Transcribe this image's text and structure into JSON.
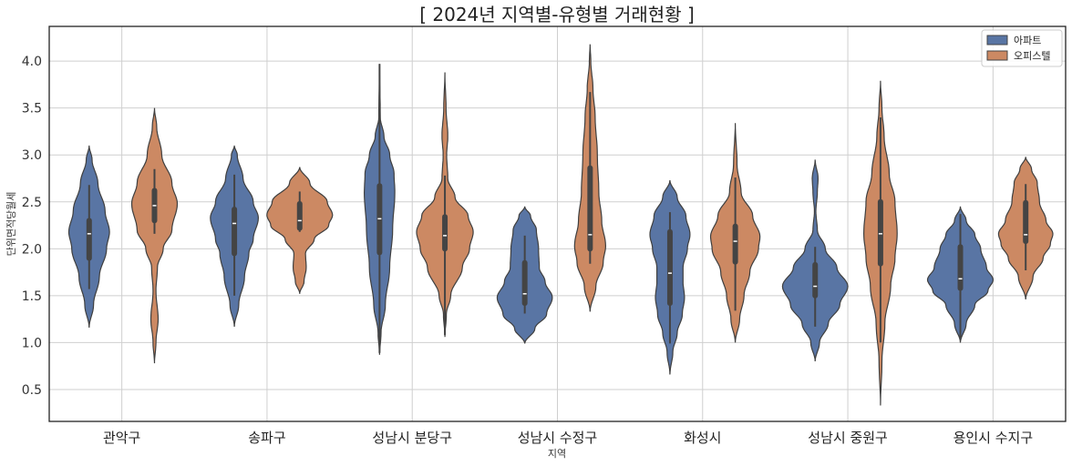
{
  "chart_data": {
    "type": "violin",
    "title": "[ 2024년 지역별-유형별 거래현황 ]",
    "xlabel": "지역",
    "ylabel": "단위면적당월세",
    "ylim": [
      0.16,
      4.37
    ],
    "yticks": [
      "0.5",
      "1.0",
      "1.5",
      "2.0",
      "2.5",
      "3.0",
      "3.5",
      "4.0"
    ],
    "ytick_values": [
      0.5,
      1.0,
      1.5,
      2.0,
      2.5,
      3.0,
      3.5,
      4.0
    ],
    "grid": true,
    "legend_position": "top-right",
    "categories": [
      "관악구",
      "송파구",
      "성남시 분당구",
      "성남시 수정구",
      "화성시",
      "성남시 중원구",
      "용인시 수지구"
    ],
    "series": [
      {
        "name": "아파트",
        "color": "#5975a4",
        "violins": [
          {
            "profile": [
              [
                1.16,
                0
              ],
              [
                1.4,
                0.03
              ],
              [
                1.7,
                0.07
              ],
              [
                2.0,
                0.12
              ],
              [
                2.18,
                0.14
              ],
              [
                2.4,
                0.11
              ],
              [
                2.7,
                0.06
              ],
              [
                2.95,
                0.02
              ],
              [
                3.1,
                0
              ]
            ],
            "q1": 1.9,
            "median": 2.16,
            "q3": 2.3,
            "whisker_low": 1.57,
            "whisker_high": 2.68
          },
          {
            "profile": [
              [
                1.17,
                0
              ],
              [
                1.4,
                0.03
              ],
              [
                1.7,
                0.07
              ],
              [
                1.95,
                0.1
              ],
              [
                2.1,
                0.13
              ],
              [
                2.33,
                0.165
              ],
              [
                2.5,
                0.13
              ],
              [
                2.75,
                0.06
              ],
              [
                3.0,
                0.02
              ],
              [
                3.1,
                0
              ]
            ],
            "q1": 1.95,
            "median": 2.27,
            "q3": 2.42,
            "whisker_low": 1.5,
            "whisker_high": 2.79
          },
          {
            "profile": [
              [
                0.87,
                0
              ],
              [
                1.1,
                0.01
              ],
              [
                1.4,
                0.04
              ],
              [
                1.8,
                0.07
              ],
              [
                2.2,
                0.09
              ],
              [
                2.6,
                0.105
              ],
              [
                2.8,
                0.1
              ],
              [
                3.0,
                0.07
              ],
              [
                3.2,
                0.03
              ],
              [
                3.4,
                0.005
              ],
              [
                3.97,
                0
              ]
            ],
            "q1": 1.96,
            "median": 2.32,
            "q3": 2.67,
            "whisker_low": 0.89,
            "whisker_high": 3.97
          },
          {
            "profile": [
              [
                0.99,
                0
              ],
              [
                1.15,
                0.07
              ],
              [
                1.3,
                0.15
              ],
              [
                1.48,
                0.19
              ],
              [
                1.65,
                0.14
              ],
              [
                1.8,
                0.1
              ],
              [
                2.0,
                0.095
              ],
              [
                2.2,
                0.08
              ],
              [
                2.35,
                0.04
              ],
              [
                2.45,
                0
              ]
            ],
            "q1": 1.42,
            "median": 1.52,
            "q3": 1.85,
            "whisker_low": 1.31,
            "whisker_high": 2.14
          },
          {
            "profile": [
              [
                0.66,
                0
              ],
              [
                0.9,
                0.02
              ],
              [
                1.1,
                0.05
              ],
              [
                1.3,
                0.085
              ],
              [
                1.48,
                0.1
              ],
              [
                1.65,
                0.09
              ],
              [
                1.8,
                0.09
              ],
              [
                2.0,
                0.12
              ],
              [
                2.15,
                0.138
              ],
              [
                2.35,
                0.11
              ],
              [
                2.55,
                0.05
              ],
              [
                2.73,
                0
              ]
            ],
            "q1": 1.42,
            "median": 1.74,
            "q3": 2.18,
            "whisker_low": 0.99,
            "whisker_high": 2.39
          },
          {
            "profile": [
              [
                0.8,
                0
              ],
              [
                1.0,
                0.03
              ],
              [
                1.2,
                0.09
              ],
              [
                1.4,
                0.17
              ],
              [
                1.6,
                0.225
              ],
              [
                1.8,
                0.15
              ],
              [
                2.0,
                0.07
              ],
              [
                2.2,
                0.015
              ],
              [
                2.4,
                0.005
              ],
              [
                2.6,
                0.015
              ],
              [
                2.75,
                0.02
              ],
              [
                2.95,
                0
              ]
            ],
            "q1": 1.5,
            "median": 1.6,
            "q3": 1.83,
            "whisker_low": 1.17,
            "whisker_high": 2.02
          },
          {
            "profile": [
              [
                1.0,
                0
              ],
              [
                1.2,
                0.04
              ],
              [
                1.4,
                0.1
              ],
              [
                1.55,
                0.19
              ],
              [
                1.67,
                0.226
              ],
              [
                1.8,
                0.18
              ],
              [
                2.0,
                0.14
              ],
              [
                2.15,
                0.1
              ],
              [
                2.3,
                0.04
              ],
              [
                2.45,
                0
              ]
            ],
            "q1": 1.58,
            "median": 1.68,
            "q3": 2.02,
            "whisker_low": 1.05,
            "whisker_high": 2.37
          }
        ]
      },
      {
        "name": "오피스텔",
        "color": "#cc8963",
        "violins": [
          {
            "profile": [
              [
                0.78,
                0
              ],
              [
                1.0,
                0.01
              ],
              [
                1.25,
                0.025
              ],
              [
                1.55,
                0.01
              ],
              [
                1.8,
                0.02
              ],
              [
                2.0,
                0.06
              ],
              [
                2.2,
                0.12
              ],
              [
                2.48,
                0.157
              ],
              [
                2.7,
                0.12
              ],
              [
                3.0,
                0.05
              ],
              [
                3.3,
                0.015
              ],
              [
                3.5,
                0
              ]
            ],
            "q1": 2.3,
            "median": 2.46,
            "q3": 2.62,
            "whisker_low": 2.16,
            "whisker_high": 2.85
          },
          {
            "profile": [
              [
                1.52,
                0
              ],
              [
                1.65,
                0.03
              ],
              [
                1.8,
                0.045
              ],
              [
                1.95,
                0.04
              ],
              [
                2.1,
                0.1
              ],
              [
                2.25,
                0.2
              ],
              [
                2.36,
                0.226
              ],
              [
                2.5,
                0.19
              ],
              [
                2.7,
                0.07
              ],
              [
                2.87,
                0
              ]
            ],
            "q1": 2.22,
            "median": 2.3,
            "q3": 2.48,
            "whisker_low": 2.18,
            "whisker_high": 2.61
          },
          {
            "profile": [
              [
                1.06,
                0
              ],
              [
                1.3,
                0.01
              ],
              [
                1.5,
                0.04
              ],
              [
                1.8,
                0.12
              ],
              [
                2.0,
                0.17
              ],
              [
                2.18,
                0.195
              ],
              [
                2.35,
                0.16
              ],
              [
                2.55,
                0.07
              ],
              [
                2.75,
                0.02
              ],
              [
                3.0,
                0.012
              ],
              [
                3.2,
                0.02
              ],
              [
                3.5,
                0.008
              ],
              [
                3.88,
                0
              ]
            ],
            "q1": 2.0,
            "median": 2.14,
            "q3": 2.34,
            "whisker_low": 1.08,
            "whisker_high": 2.78
          },
          {
            "profile": [
              [
                1.33,
                0
              ],
              [
                1.6,
                0.04
              ],
              [
                1.85,
                0.09
              ],
              [
                2.03,
                0.107
              ],
              [
                2.3,
                0.08
              ],
              [
                2.6,
                0.06
              ],
              [
                3.0,
                0.05
              ],
              [
                3.4,
                0.035
              ],
              [
                3.7,
                0.02
              ],
              [
                4.0,
                0.005
              ],
              [
                4.18,
                0
              ]
            ],
            "q1": 2.0,
            "median": 2.15,
            "q3": 2.86,
            "whisker_low": 1.84,
            "whisker_high": 3.67
          },
          {
            "profile": [
              [
                1.0,
                0
              ],
              [
                1.25,
                0.03
              ],
              [
                1.5,
                0.06
              ],
              [
                1.75,
                0.1
              ],
              [
                2.0,
                0.16
              ],
              [
                2.13,
                0.17
              ],
              [
                2.35,
                0.12
              ],
              [
                2.6,
                0.04
              ],
              [
                2.9,
                0.012
              ],
              [
                3.34,
                0
              ]
            ],
            "q1": 1.86,
            "median": 2.08,
            "q3": 2.24,
            "whisker_low": 1.34,
            "whisker_high": 2.76
          },
          {
            "profile": [
              [
                0.33,
                0
              ],
              [
                0.8,
                0.01
              ],
              [
                1.2,
                0.03
              ],
              [
                1.6,
                0.07
              ],
              [
                1.9,
                0.1
              ],
              [
                2.16,
                0.115
              ],
              [
                2.5,
                0.1
              ],
              [
                2.8,
                0.06
              ],
              [
                3.2,
                0.025
              ],
              [
                3.5,
                0.01
              ],
              [
                3.79,
                0
              ]
            ],
            "q1": 1.84,
            "median": 2.16,
            "q3": 2.5,
            "whisker_low": 1.0,
            "whisker_high": 3.4
          },
          {
            "profile": [
              [
                1.46,
                0
              ],
              [
                1.7,
                0.05
              ],
              [
                1.9,
                0.12
              ],
              [
                2.05,
                0.17
              ],
              [
                2.16,
                0.187
              ],
              [
                2.3,
                0.14
              ],
              [
                2.5,
                0.095
              ],
              [
                2.7,
                0.08
              ],
              [
                2.85,
                0.04
              ],
              [
                2.98,
                0
              ]
            ],
            "q1": 2.08,
            "median": 2.15,
            "q3": 2.49,
            "whisker_low": 1.77,
            "whisker_high": 2.69
          }
        ]
      }
    ]
  }
}
